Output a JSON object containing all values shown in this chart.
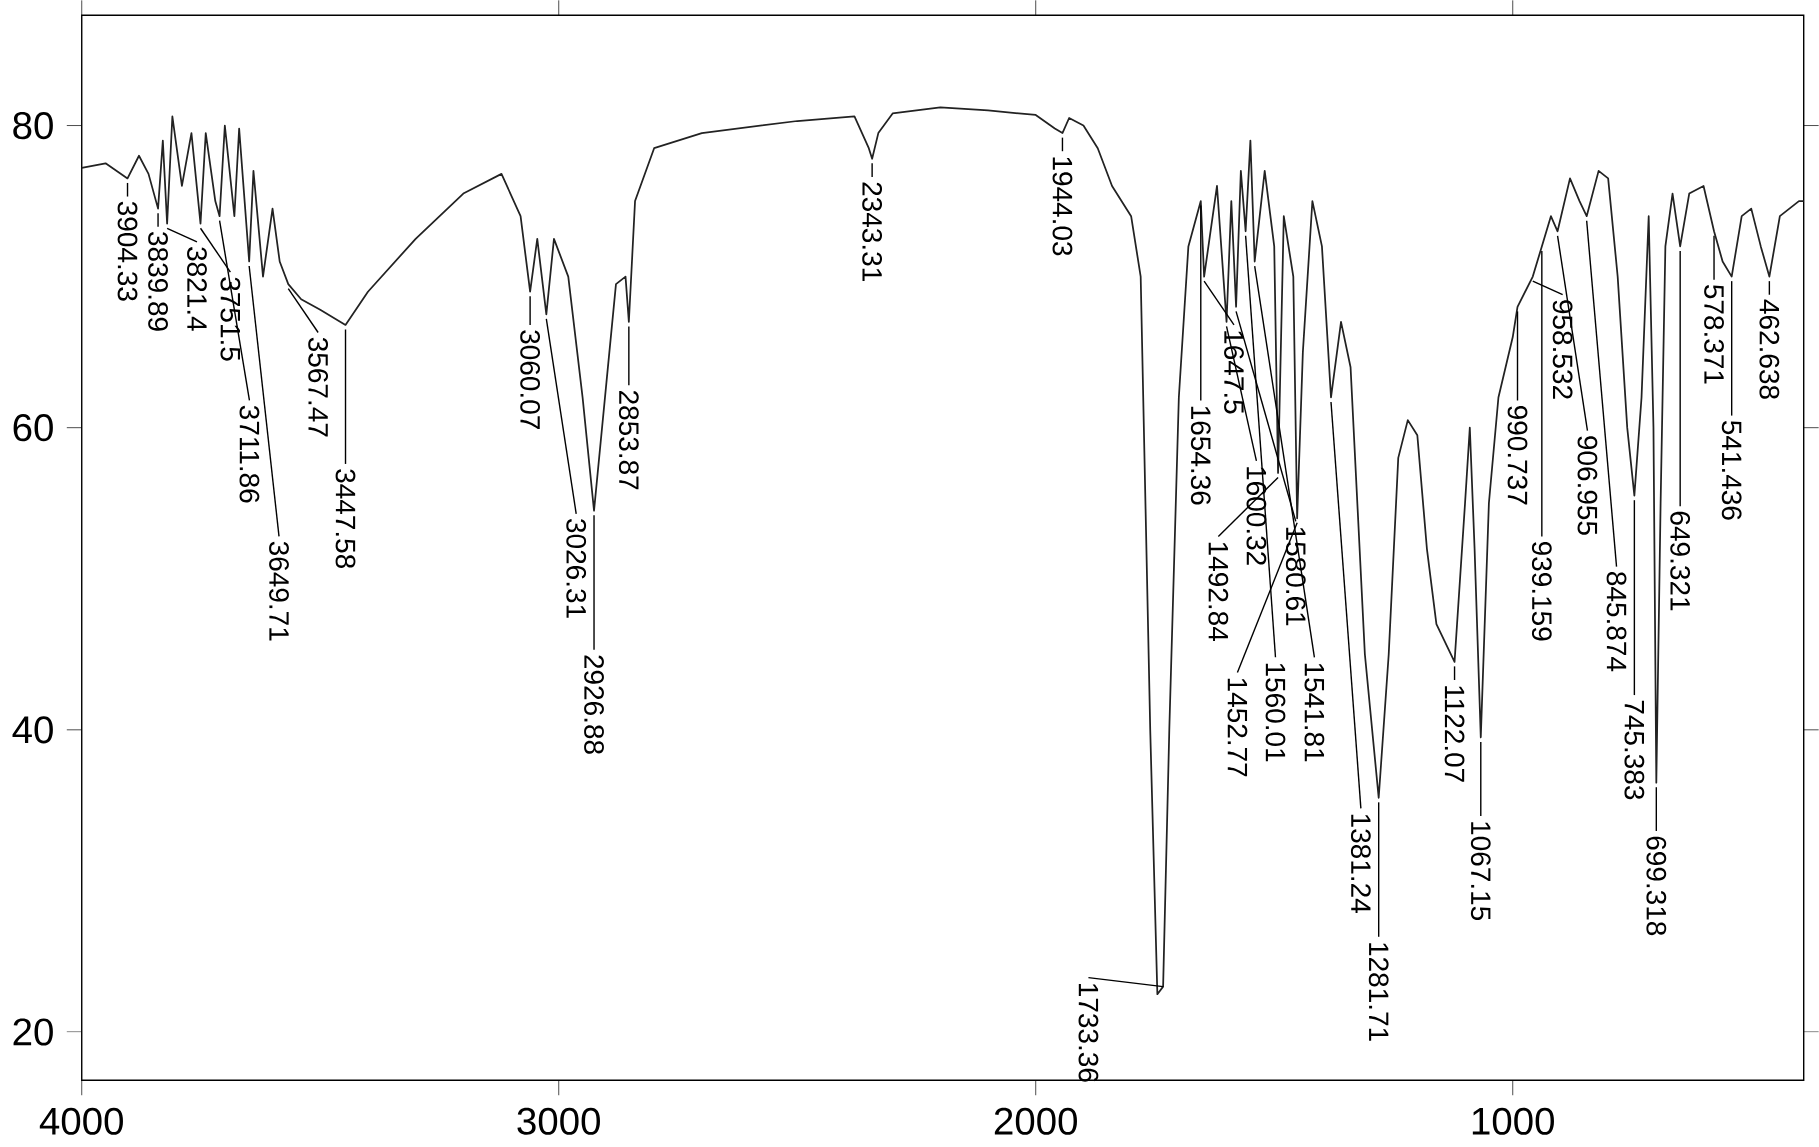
{
  "chart_data": {
    "type": "line",
    "color": "#222222",
    "x": [
      4000,
      3950,
      3904,
      3880,
      3860,
      3840,
      3830,
      3821,
      3810,
      3790,
      3770,
      3751,
      3740,
      3720,
      3711,
      3700,
      3680,
      3670,
      3649,
      3640,
      3620,
      3600,
      3585,
      3567,
      3540,
      3500,
      3447,
      3400,
      3300,
      3200,
      3120,
      3080,
      3060,
      3045,
      3026,
      3010,
      2980,
      2950,
      2926,
      2900,
      2880,
      2860,
      2853,
      2840,
      2800,
      2700,
      2500,
      2380,
      2350,
      2343,
      2330,
      2300,
      2200,
      2100,
      2000,
      1960,
      1944,
      1930,
      1900,
      1870,
      1840,
      1800,
      1780,
      1760,
      1745,
      1733,
      1720,
      1700,
      1680,
      1654,
      1647,
      1620,
      1600,
      1590,
      1580,
      1570,
      1560,
      1550,
      1541,
      1520,
      1500,
      1492,
      1480,
      1460,
      1452,
      1440,
      1420,
      1400,
      1381,
      1360,
      1340,
      1310,
      1281,
      1260,
      1240,
      1220,
      1200,
      1180,
      1160,
      1122,
      1100,
      1090,
      1080,
      1067,
      1050,
      1030,
      1000,
      990,
      958,
      939,
      920,
      906,
      880,
      860,
      845,
      820,
      800,
      780,
      760,
      745,
      730,
      715,
      705,
      699,
      690,
      680,
      665,
      649,
      630,
      600,
      578,
      560,
      541,
      520,
      500,
      480,
      462,
      440,
      400,
      390
    ],
    "values": [
      77.2,
      77.5,
      76.5,
      78,
      76.8,
      74.5,
      79,
      73.5,
      80.6,
      76,
      79.5,
      73.5,
      79.5,
      75,
      74,
      80,
      74,
      79.8,
      71,
      77,
      70,
      74.5,
      71,
      69.5,
      68.5,
      67.8,
      66.8,
      69,
      72.5,
      75.5,
      76.8,
      74,
      69,
      72.5,
      67.5,
      72.5,
      70,
      62,
      54.5,
      63,
      69.5,
      70,
      67,
      75,
      78.5,
      79.5,
      80.3,
      80.6,
      78.5,
      77.8,
      79.5,
      80.8,
      81.2,
      81,
      80.7,
      79.8,
      79.5,
      80.5,
      80,
      78.5,
      76,
      74,
      70,
      40,
      22.5,
      23,
      40,
      62,
      72,
      75,
      70,
      76,
      67,
      75,
      68,
      77,
      73,
      79,
      71,
      77,
      72,
      57,
      74,
      70,
      54,
      65,
      75,
      72,
      62,
      67,
      64,
      45,
      35.5,
      45,
      58,
      60.5,
      59.5,
      52,
      47,
      44.5,
      55,
      60,
      52,
      39.5,
      55,
      62,
      66,
      68,
      70,
      72,
      74,
      73,
      76.5,
      75,
      74,
      77,
      76.5,
      70,
      60,
      55.5,
      62,
      74,
      60,
      36.5,
      55,
      72,
      75.5,
      72,
      75.5,
      76,
      73,
      71,
      70,
      74,
      74.5,
      72,
      70,
      74,
      75,
      75
    ],
    "xlim": [
      4000,
      390
    ],
    "ylim": [
      16.8,
      87.3
    ],
    "xticks": [
      4000,
      3000,
      2000,
      1000
    ],
    "yticks": [
      20,
      40,
      60,
      80
    ],
    "annotations": [
      {
        "text": "3904.33",
        "x": 3904,
        "y": 76.5
      },
      {
        "text": "3839.89",
        "x": 3840,
        "y": 74.5
      },
      {
        "text": "3821.4",
        "x": 3821,
        "y": 73.5
      },
      {
        "text": "3751.5",
        "x": 3751,
        "y": 73.5
      },
      {
        "text": "3711.86",
        "x": 3711,
        "y": 74
      },
      {
        "text": "3649.71",
        "x": 3649,
        "y": 71
      },
      {
        "text": "3567.47",
        "x": 3567,
        "y": 69.5
      },
      {
        "text": "3447.58",
        "x": 3447,
        "y": 66.8
      },
      {
        "text": "3060.07",
        "x": 3060,
        "y": 69
      },
      {
        "text": "3026.31",
        "x": 3026,
        "y": 67.5
      },
      {
        "text": "2926.88",
        "x": 2926,
        "y": 54.5
      },
      {
        "text": "2853.87",
        "x": 2853,
        "y": 67
      },
      {
        "text": "2343.31",
        "x": 2343,
        "y": 77.8
      },
      {
        "text": "1944.03",
        "x": 1944,
        "y": 79.5
      },
      {
        "text": "1733.36",
        "x": 1733,
        "y": 23
      },
      {
        "text": "1654.36",
        "x": 1654,
        "y": 75
      },
      {
        "text": "1647.5",
        "x": 1647,
        "y": 70
      },
      {
        "text": "1600.32",
        "x": 1600,
        "y": 67
      },
      {
        "text": "1580.61",
        "x": 1580,
        "y": 68
      },
      {
        "text": "1560.01",
        "x": 1560,
        "y": 73
      },
      {
        "text": "1541.81",
        "x": 1541,
        "y": 71
      },
      {
        "text": "1492.84",
        "x": 1492,
        "y": 57
      },
      {
        "text": "1452.77",
        "x": 1452,
        "y": 54
      },
      {
        "text": "1381.24",
        "x": 1381,
        "y": 62
      },
      {
        "text": "1281.71",
        "x": 1281,
        "y": 35.5
      },
      {
        "text": "1122.07",
        "x": 1122,
        "y": 44.5
      },
      {
        "text": "1067.15",
        "x": 1067,
        "y": 39.5
      },
      {
        "text": "990.737",
        "x": 990,
        "y": 68
      },
      {
        "text": "958.532",
        "x": 958,
        "y": 70
      },
      {
        "text": "939.159",
        "x": 939,
        "y": 72
      },
      {
        "text": "906.955",
        "x": 906,
        "y": 73
      },
      {
        "text": "845.874",
        "x": 845,
        "y": 74
      },
      {
        "text": "745.383",
        "x": 745,
        "y": 55.5
      },
      {
        "text": "699.318",
        "x": 699,
        "y": 36.5
      },
      {
        "text": "649.321",
        "x": 649,
        "y": 72
      },
      {
        "text": "578.371",
        "x": 578,
        "y": 73
      },
      {
        "text": "541.436",
        "x": 541,
        "y": 70
      },
      {
        "text": "462.638",
        "x": 462,
        "y": 70
      }
    ]
  }
}
